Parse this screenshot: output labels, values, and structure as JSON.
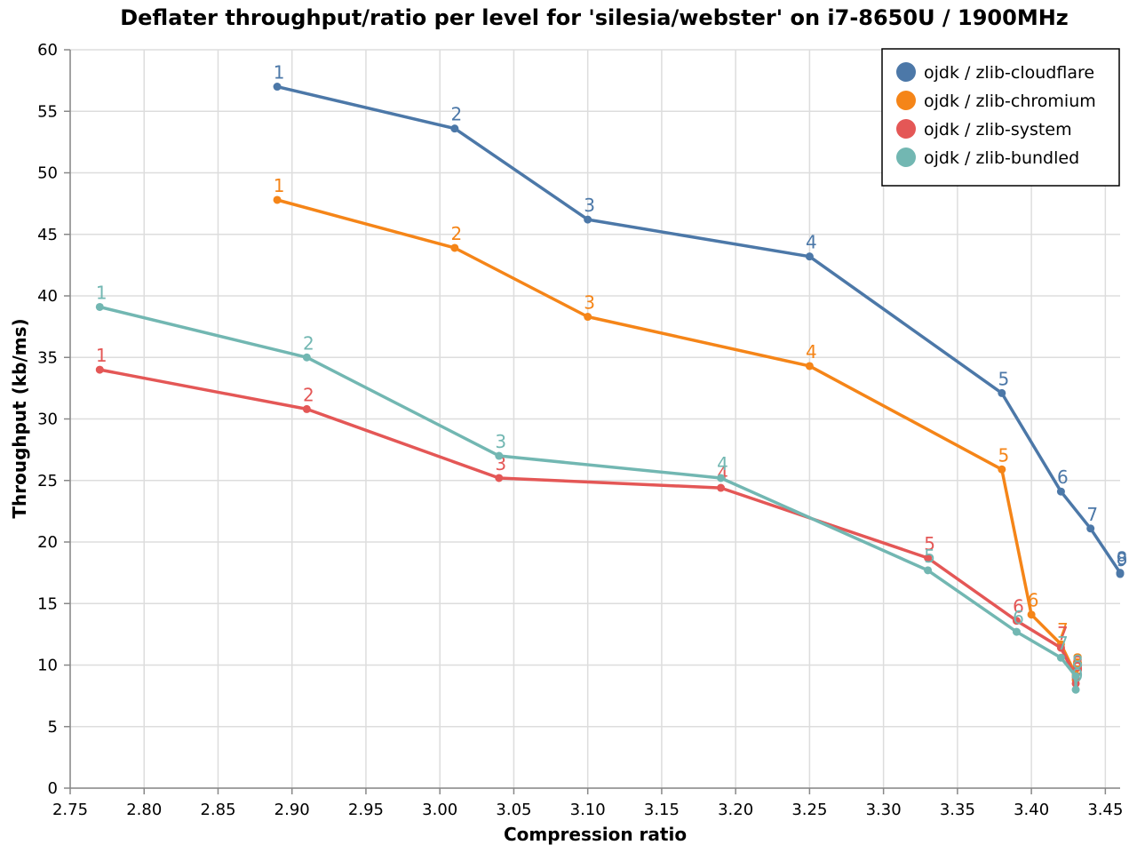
{
  "chart_data": {
    "type": "line",
    "title": "Deflater throughput/ratio per level for 'silesia/webster' on i7-8650U / 1900MHz",
    "xlabel": "Compression ratio",
    "ylabel": "Throughput (kb/ms)",
    "xlim": [
      2.75,
      3.46
    ],
    "ylim": [
      0,
      60
    ],
    "x_ticks": [
      "2.75",
      "2.80",
      "2.85",
      "2.90",
      "2.95",
      "3.00",
      "3.05",
      "3.10",
      "3.15",
      "3.20",
      "3.25",
      "3.30",
      "3.35",
      "3.40",
      "3.45"
    ],
    "y_ticks": [
      "0",
      "5",
      "10",
      "15",
      "20",
      "25",
      "30",
      "35",
      "40",
      "45",
      "50",
      "55",
      "60"
    ],
    "grid": true,
    "legend_position": "top-right",
    "series": [
      {
        "name": "ojdk / zlib-cloudflare",
        "color": "#4c78a8",
        "points": [
          {
            "x": 2.89,
            "y": 57.0,
            "label": "1"
          },
          {
            "x": 3.01,
            "y": 53.6,
            "label": "2"
          },
          {
            "x": 3.1,
            "y": 46.2,
            "label": "3"
          },
          {
            "x": 3.25,
            "y": 43.2,
            "label": "4"
          },
          {
            "x": 3.38,
            "y": 32.1,
            "label": "5"
          },
          {
            "x": 3.42,
            "y": 24.1,
            "label": "6"
          },
          {
            "x": 3.44,
            "y": 21.1,
            "label": "7"
          },
          {
            "x": 3.46,
            "y": 17.5,
            "label": "8"
          },
          {
            "x": 3.46,
            "y": 17.4,
            "label": "9"
          }
        ]
      },
      {
        "name": "ojdk / zlib-chromium",
        "color": "#f58518",
        "points": [
          {
            "x": 2.89,
            "y": 47.8,
            "label": "1"
          },
          {
            "x": 3.01,
            "y": 43.9,
            "label": "2"
          },
          {
            "x": 3.1,
            "y": 38.3,
            "label": "3"
          },
          {
            "x": 3.25,
            "y": 34.3,
            "label": "4"
          },
          {
            "x": 3.38,
            "y": 25.9,
            "label": "5"
          },
          {
            "x": 3.4,
            "y": 14.1,
            "label": "6"
          },
          {
            "x": 3.42,
            "y": 11.7,
            "label": "7"
          },
          {
            "x": 3.43,
            "y": 9.2,
            "label": "8"
          },
          {
            "x": 3.43,
            "y": 8.8,
            "label": "9"
          }
        ]
      },
      {
        "name": "ojdk / zlib-system",
        "color": "#e45756",
        "points": [
          {
            "x": 2.77,
            "y": 34.0,
            "label": "1"
          },
          {
            "x": 2.91,
            "y": 30.8,
            "label": "2"
          },
          {
            "x": 3.04,
            "y": 25.2,
            "label": "3"
          },
          {
            "x": 3.19,
            "y": 24.4,
            "label": "4"
          },
          {
            "x": 3.33,
            "y": 18.7,
            "label": "5"
          },
          {
            "x": 3.39,
            "y": 13.6,
            "label": "6"
          },
          {
            "x": 3.42,
            "y": 11.4,
            "label": "7"
          },
          {
            "x": 3.43,
            "y": 9.0,
            "label": "8"
          },
          {
            "x": 3.43,
            "y": 8.5,
            "label": "9"
          }
        ]
      },
      {
        "name": "ojdk / zlib-bundled",
        "color": "#72b7b2",
        "points": [
          {
            "x": 2.77,
            "y": 39.1,
            "label": "1"
          },
          {
            "x": 2.91,
            "y": 35.0,
            "label": "2"
          },
          {
            "x": 3.04,
            "y": 27.0,
            "label": "3"
          },
          {
            "x": 3.19,
            "y": 25.2,
            "label": "4"
          },
          {
            "x": 3.33,
            "y": 17.7,
            "label": "5"
          },
          {
            "x": 3.39,
            "y": 12.7,
            "label": "6"
          },
          {
            "x": 3.42,
            "y": 10.6,
            "label": "7"
          },
          {
            "x": 3.43,
            "y": 9.1,
            "label": "8"
          },
          {
            "x": 3.43,
            "y": 8.0,
            "label": "9"
          }
        ]
      }
    ]
  }
}
